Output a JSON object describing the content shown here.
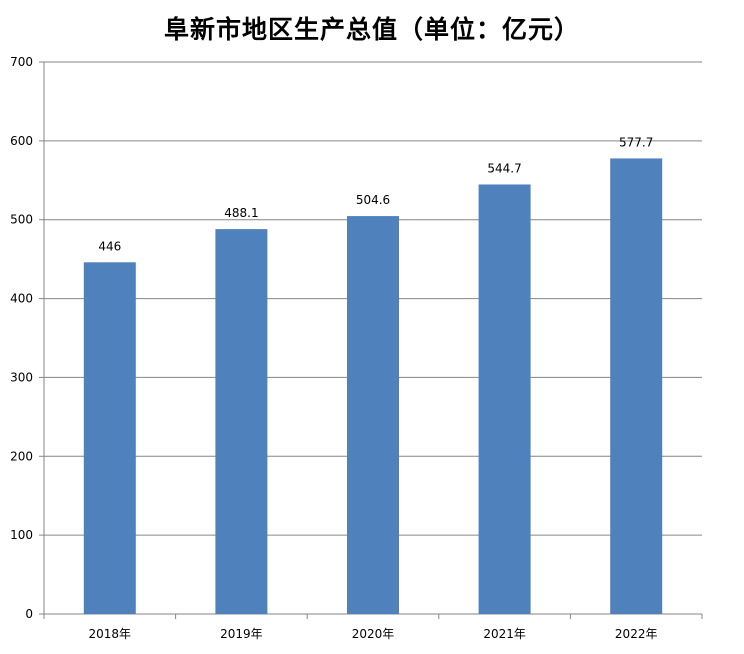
{
  "title": "阜新市地区生产总值（单位：亿元）",
  "chart_data": {
    "type": "bar",
    "title": "阜新市地区生产总值（单位：亿元）",
    "categories": [
      "2018年",
      "2019年",
      "2020年",
      "2021年",
      "2022年"
    ],
    "values": [
      446,
      488.1,
      504.6,
      544.7,
      577.7
    ],
    "value_labels": [
      "446",
      "488.1",
      "504.6",
      "544.7",
      "577.7"
    ],
    "y_ticks": [
      "0",
      "100",
      "200",
      "300",
      "400",
      "500",
      "600",
      "700"
    ],
    "ylim": [
      0,
      700
    ],
    "xlabel": "",
    "ylabel": "",
    "grid": true,
    "legend": "none",
    "bar_color": "#4f81bd",
    "grid_color": "#868686",
    "axis_color": "#868686"
  }
}
